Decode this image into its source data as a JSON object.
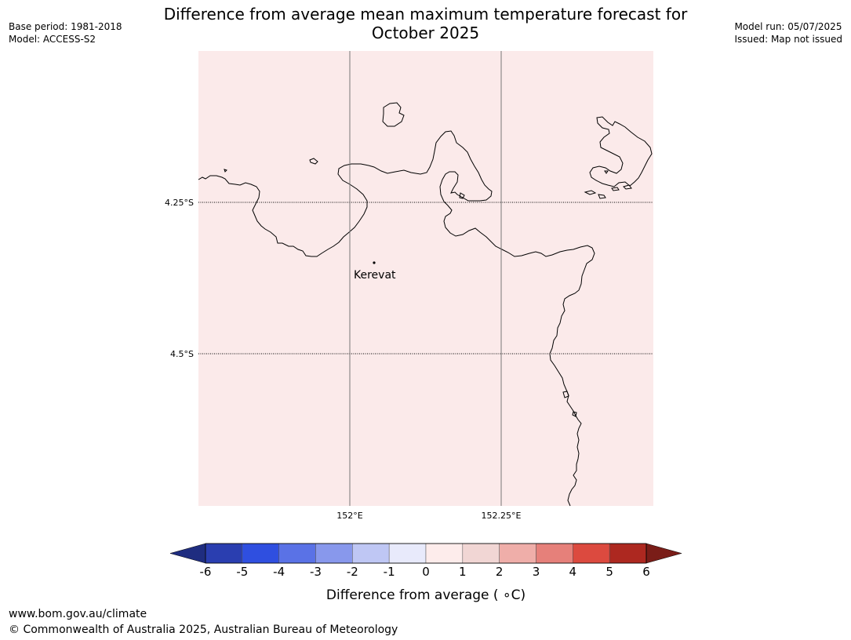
{
  "header": {
    "title_line1": "Difference from average mean maximum temperature forecast for",
    "title_line2": "October 2025",
    "base_period": "Base period: 1981-2018",
    "model": "Model: ACCESS-S2",
    "model_run": "Model run: 05/07/2025",
    "issued": "Issued: Map not issued"
  },
  "map": {
    "fill_color": "#fbeaea",
    "coast_color": "#000000",
    "lat_labels": [
      "4.25°S",
      "4.5°S"
    ],
    "lon_labels": [
      "152°E",
      "152.25°E"
    ],
    "place": {
      "name": "Kerevat"
    }
  },
  "colorbar": {
    "ticks": [
      "-6",
      "-5",
      "-4",
      "-3",
      "-2",
      "-1",
      "0",
      "1",
      "2",
      "3",
      "4",
      "5",
      "6"
    ],
    "colors": [
      "#1f2d80",
      "#2a3eb0",
      "#2f4fe0",
      "#5a72e6",
      "#8898ec",
      "#bfc7f4",
      "#e8eafb",
      "#fdeceb",
      "#f1d6d4",
      "#efaea9",
      "#e6807a",
      "#dc4a3f",
      "#ad2820",
      "#7a1d18"
    ],
    "label": "Difference from average ( ∘C)"
  },
  "footer": {
    "url": "www.bom.gov.au/climate",
    "copyright": "© Commonwealth of Australia 2025, Australian Bureau of Meteorology"
  }
}
